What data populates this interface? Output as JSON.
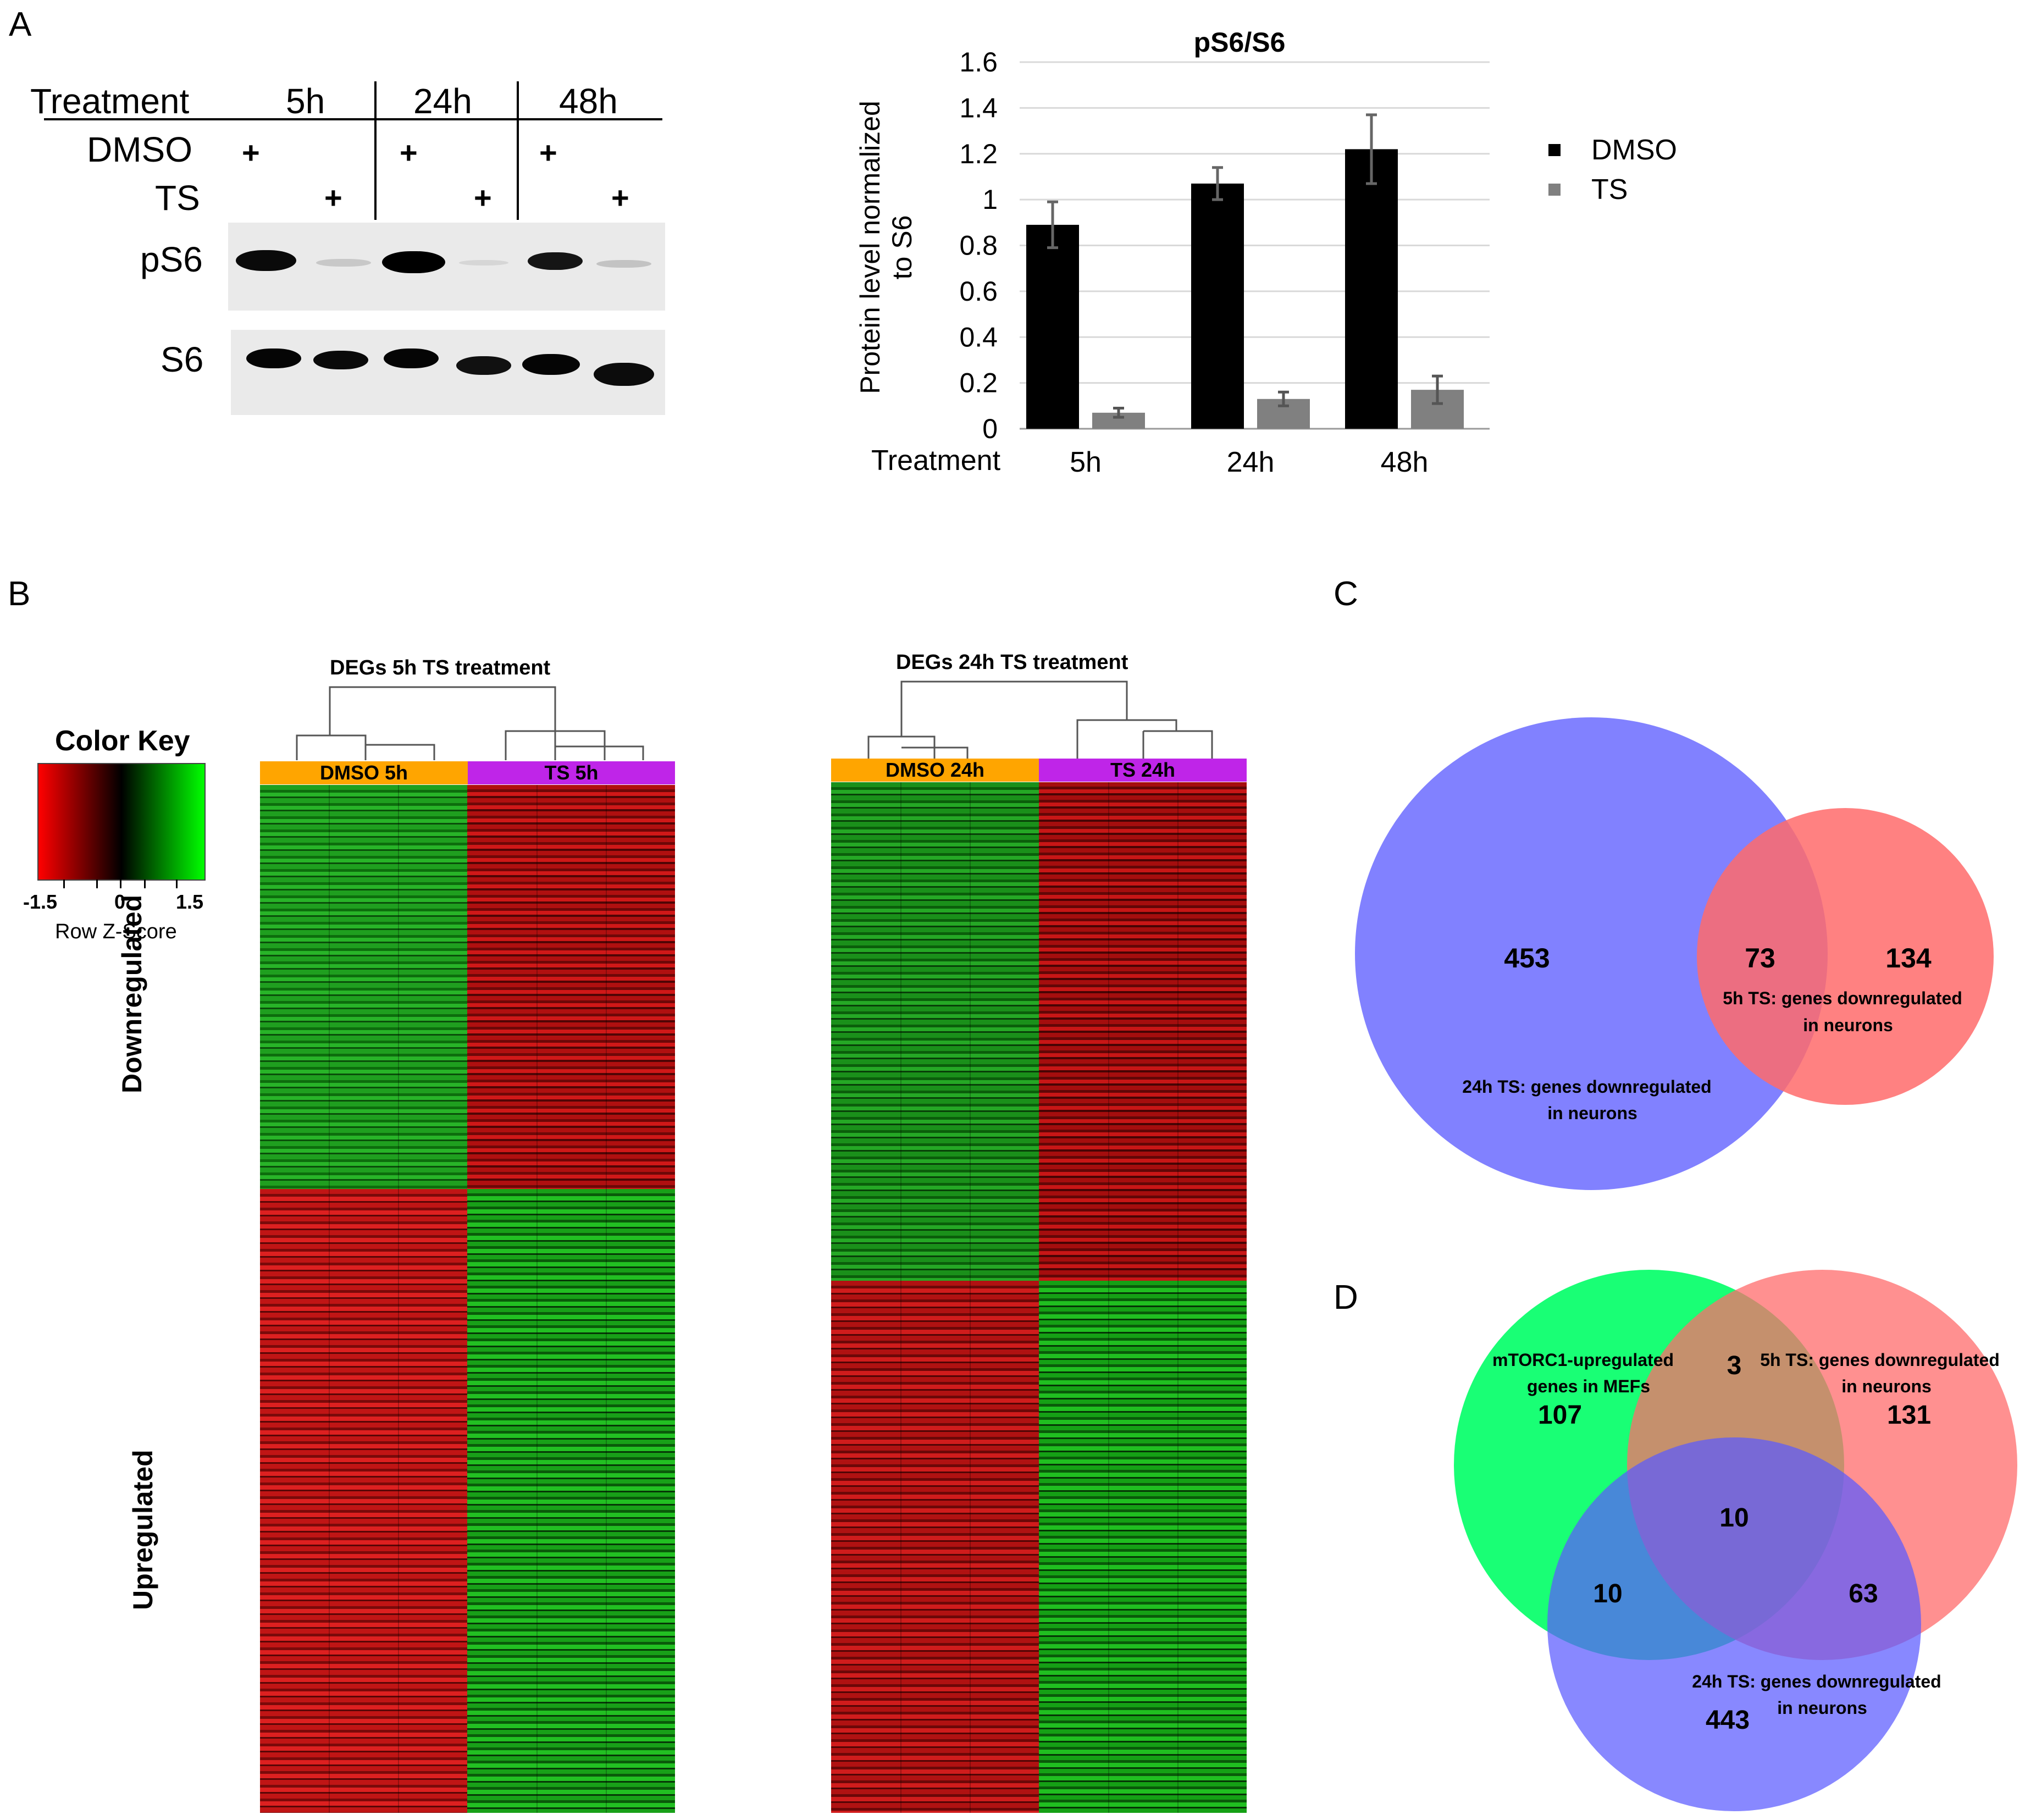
{
  "panel_letters": {
    "a": "A",
    "b": "B",
    "c": "C",
    "d": "D"
  },
  "blot": {
    "treatment_label": "Treatment",
    "timepoints": [
      "5h",
      "24h",
      "48h"
    ],
    "rows": {
      "dmso": "DMSO",
      "ts": "TS"
    },
    "plus": "+",
    "bands": {
      "ps6": "pS6",
      "s6": "S6"
    }
  },
  "chart_data": {
    "type": "bar",
    "title": "pS6/S6",
    "ylabel": "Protein level normalized to S6",
    "ylabel_lines": [
      "Protein level normalized",
      "to S6"
    ],
    "xlabel": "Treatment",
    "categories": [
      "5h",
      "24h",
      "48h"
    ],
    "ylim": [
      0,
      1.6
    ],
    "yticks": [
      "0",
      "0.2",
      "0.4",
      "0.6",
      "0.8",
      "1",
      "1.2",
      "1.4",
      "1.6"
    ],
    "grid": true,
    "legend_position": "right",
    "series": [
      {
        "name": "DMSO",
        "color": "#000000",
        "values": [
          0.89,
          1.07,
          1.22
        ],
        "errors": [
          0.1,
          0.07,
          0.15
        ]
      },
      {
        "name": "TS",
        "color": "#808080",
        "values": [
          0.07,
          0.13,
          0.17
        ],
        "errors": [
          0.02,
          0.03,
          0.06
        ]
      }
    ]
  },
  "heatmaps": {
    "color_key": {
      "title": "Color Key",
      "ticks": [
        "-1.5",
        "0",
        "1.5"
      ],
      "subtitle": "Row Z-Score",
      "low_color": "#ff0000",
      "mid_color": "#000000",
      "high_color": "#00ff00"
    },
    "row_labels": {
      "down": "Downregulated",
      "up": "Upregulated"
    },
    "left": {
      "title": "DEGs 5h TS treatment",
      "groups": [
        "DMSO 5h",
        "TS 5h"
      ]
    },
    "right": {
      "title": "DEGs 24h TS treatment",
      "groups": [
        "DMSO 24h",
        "TS 24h"
      ]
    },
    "group_colors": {
      "dmso": "#ffa500",
      "ts": "#bf25e8"
    }
  },
  "venn_c": {
    "only_24h": "453",
    "overlap": "73",
    "only_5h": "134",
    "label_5h": [
      "5h TS: genes downregulated",
      "in neurons"
    ],
    "label_24h": [
      "24h TS: genes downregulated",
      "in neurons"
    ],
    "colors": {
      "blue": "#6b6bff",
      "red": "#ff6b6b"
    }
  },
  "venn_d": {
    "mtorc1_only": "107",
    "mtorc1_5h": "3",
    "only_5h": "131",
    "center": "10",
    "mtorc1_24h": "10",
    "h5_24h": "63",
    "only_24h": "443",
    "label_mtorc1": [
      "mTORC1-upregulated",
      "genes in MEFs"
    ],
    "label_5h": [
      "5h TS: genes downregulated",
      "in neurons"
    ],
    "label_24h": [
      "24h TS: genes downregulated",
      "in neurons"
    ],
    "colors": {
      "green": "#00ff66",
      "red": "#ff6b6b",
      "blue": "#6b6bff"
    }
  }
}
